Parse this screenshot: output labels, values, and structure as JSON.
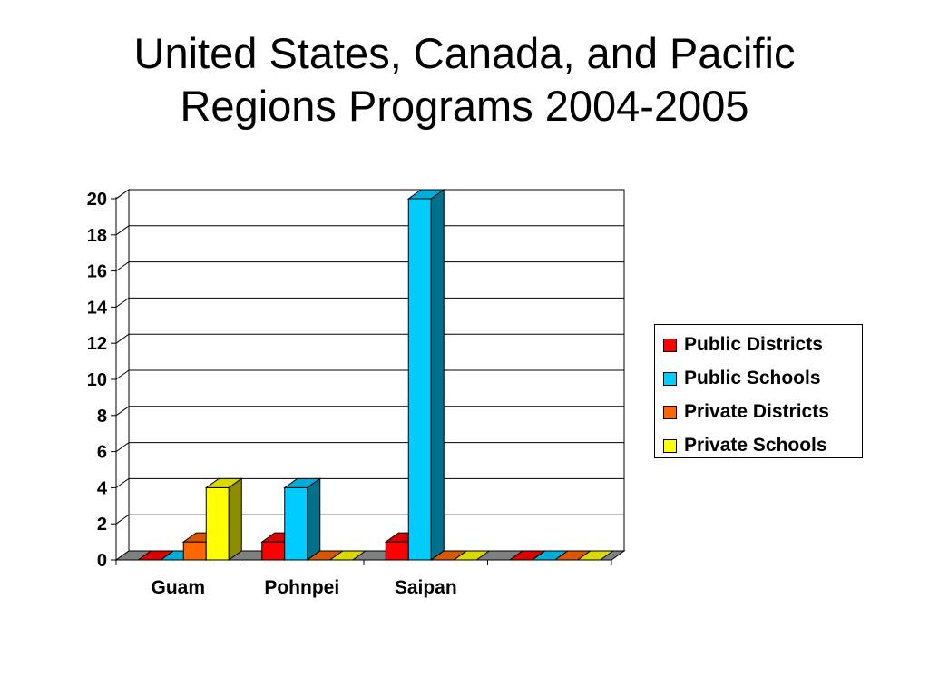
{
  "title": {
    "line1": "United States, Canada, and Pacific",
    "line2": "Regions Programs 2004-2005"
  },
  "chart_data": {
    "type": "bar",
    "title": "",
    "xlabel": "",
    "ylabel": "",
    "ylim": [
      0,
      20
    ],
    "yticks": [
      "0",
      "2",
      "4",
      "6",
      "8",
      "10",
      "12",
      "14",
      "16",
      "18",
      "20"
    ],
    "categories": [
      "Guam",
      "Pohnpei",
      "Saipan",
      ""
    ],
    "series": [
      {
        "name": "Public Districts",
        "color": "#ff0000",
        "values": [
          0,
          1,
          1,
          0
        ]
      },
      {
        "name": "Public Schools",
        "color": "#00ccff",
        "values": [
          0,
          4,
          20,
          0
        ]
      },
      {
        "name": "Private Districts",
        "color": "#ff6600",
        "values": [
          1,
          0,
          0,
          0
        ]
      },
      {
        "name": "Private Schools",
        "color": "#ffff00",
        "values": [
          4,
          0,
          0,
          0
        ]
      }
    ],
    "grid": true,
    "legend_position": "right",
    "style": "3d-clustered-column"
  }
}
